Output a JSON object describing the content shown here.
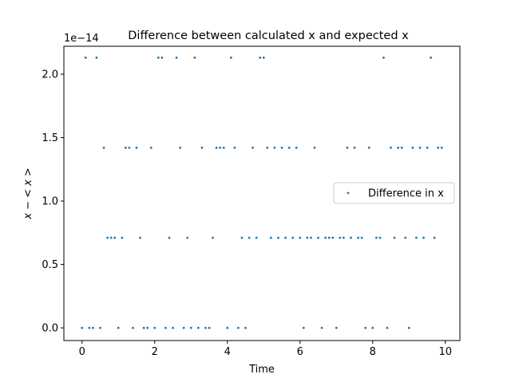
{
  "chart_data": {
    "type": "scatter",
    "title": "Difference between calculated x and expected x",
    "xlabel": "Time",
    "ylabel": "x − < x >",
    "y_offset_label": "1e−14",
    "xlim": [
      -0.5,
      10.4
    ],
    "ylim": [
      -0.1,
      2.22
    ],
    "y_multiplier_exponent": -14,
    "xticks": [
      0,
      2,
      4,
      6,
      8,
      10
    ],
    "xtick_labels": [
      "0",
      "2",
      "4",
      "6",
      "8",
      "10"
    ],
    "yticks": [
      0.0,
      0.5,
      1.0,
      1.5,
      2.0
    ],
    "ytick_labels": [
      "0.0",
      "0.5",
      "1.0",
      "1.5",
      "2.0"
    ],
    "grid": false,
    "legend_position": "center right",
    "series": [
      {
        "name": "Difference in x",
        "color": "#1f77b4",
        "x": [
          0.0,
          0.1,
          0.2,
          0.3,
          0.4,
          0.5,
          0.6,
          0.7,
          0.8,
          0.9,
          1.0,
          1.1,
          1.2,
          1.3,
          1.4,
          1.5,
          1.6,
          1.7,
          1.8,
          1.9,
          2.0,
          2.1,
          2.2,
          2.3,
          2.4,
          2.5,
          2.6,
          2.7,
          2.8,
          2.9,
          3.0,
          3.1,
          3.2,
          3.3,
          3.4,
          3.5,
          3.6,
          3.7,
          3.8,
          3.9,
          4.0,
          4.1,
          4.2,
          4.3,
          4.4,
          4.5,
          4.6,
          4.7,
          4.8,
          4.9,
          5.0,
          5.1,
          5.2,
          5.3,
          5.4,
          5.5,
          5.6,
          5.7,
          5.8,
          5.9,
          6.0,
          6.1,
          6.2,
          6.3,
          6.4,
          6.5,
          6.6,
          6.7,
          6.8,
          6.9,
          7.0,
          7.1,
          7.2,
          7.3,
          7.4,
          7.5,
          7.6,
          7.7,
          7.8,
          7.9,
          8.0,
          8.1,
          8.2,
          8.3,
          8.4,
          8.5,
          8.6,
          8.7,
          8.8,
          8.9,
          9.0,
          9.1,
          9.2,
          9.3,
          9.4,
          9.5,
          9.6,
          9.7,
          9.8,
          9.9
        ],
        "y": [
          0.0,
          2.13,
          0.0,
          0.0,
          2.13,
          0.0,
          1.42,
          0.71,
          0.71,
          0.71,
          0.0,
          0.71,
          1.42,
          1.42,
          0.0,
          1.42,
          0.71,
          0.0,
          0.0,
          1.42,
          0.0,
          2.13,
          2.13,
          0.0,
          0.71,
          0.0,
          2.13,
          1.42,
          0.0,
          0.71,
          0.0,
          2.13,
          0.0,
          1.42,
          0.0,
          0.0,
          0.71,
          1.42,
          1.42,
          1.42,
          0.0,
          2.13,
          1.42,
          0.0,
          0.71,
          0.0,
          0.71,
          1.42,
          0.71,
          2.13,
          2.13,
          1.42,
          0.71,
          1.42,
          0.71,
          1.42,
          0.71,
          1.42,
          0.71,
          1.42,
          0.71,
          0.0,
          0.71,
          0.71,
          1.42,
          0.71,
          0.0,
          0.71,
          0.71,
          0.71,
          0.0,
          0.71,
          0.71,
          1.42,
          0.71,
          1.42,
          0.71,
          0.71,
          0.0,
          1.42,
          0.0,
          0.71,
          0.71,
          2.13,
          0.0,
          1.42,
          0.71,
          1.42,
          1.42,
          0.71,
          0.0,
          1.42,
          0.71,
          1.42,
          0.71,
          1.42,
          2.13,
          0.71,
          1.42,
          1.42
        ]
      }
    ]
  }
}
